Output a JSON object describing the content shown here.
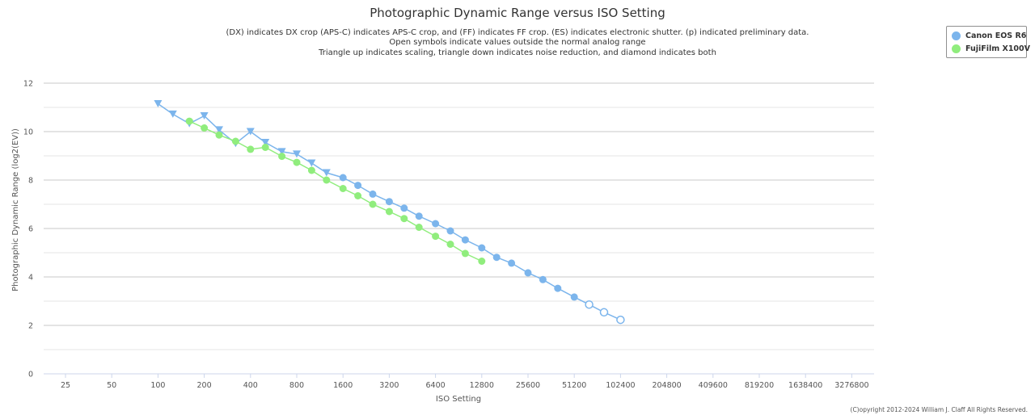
{
  "chart_data": {
    "type": "line",
    "title": "Photographic Dynamic Range versus ISO Setting",
    "subtitle": [
      "(DX) indicates DX crop (APS-C) indicates APS-C crop, and (FF) indicates FF crop. (ES) indicates electronic shutter. (p) indicated preliminary data.",
      "Open symbols indicate values outside the normal analog range",
      "Triangle up indicates scaling, triangle down indicates noise reduction, and diamond indicates both"
    ],
    "xlabel": "ISO Setting",
    "ylabel": "Photographic Dynamic Range (log2(EV))",
    "x_scale": "log2",
    "x_ticks": [
      "25",
      "50",
      "100",
      "200",
      "400",
      "800",
      "1600",
      "3200",
      "6400",
      "12800",
      "25600",
      "51200",
      "102400",
      "204800",
      "409600",
      "819200",
      "1638400",
      "3276800"
    ],
    "y_ticks": [
      "0",
      "2",
      "4",
      "6",
      "8",
      "10",
      "12"
    ],
    "ylim": [
      0,
      12
    ],
    "grid": true,
    "legend_position": "top-right",
    "series": [
      {
        "name": "Canon EOS R6",
        "color": "#7cb5ec",
        "points": [
          {
            "iso": 100,
            "dr": 11.15,
            "marker": "triangle-down",
            "open": false
          },
          {
            "iso": 125,
            "dr": 10.72,
            "marker": "triangle-down",
            "open": false
          },
          {
            "iso": 160,
            "dr": 10.33,
            "marker": "triangle-down",
            "open": false
          },
          {
            "iso": 200,
            "dr": 10.65,
            "marker": "triangle-down",
            "open": false
          },
          {
            "iso": 250,
            "dr": 10.07,
            "marker": "triangle-down",
            "open": false
          },
          {
            "iso": 320,
            "dr": 9.51,
            "marker": "triangle-down",
            "open": false
          },
          {
            "iso": 400,
            "dr": 10.0,
            "marker": "triangle-down",
            "open": false
          },
          {
            "iso": 500,
            "dr": 9.55,
            "marker": "triangle-down",
            "open": false
          },
          {
            "iso": 640,
            "dr": 9.17,
            "marker": "triangle-down",
            "open": false
          },
          {
            "iso": 800,
            "dr": 9.07,
            "marker": "triangle-down",
            "open": false
          },
          {
            "iso": 1000,
            "dr": 8.7,
            "marker": "triangle-down",
            "open": false
          },
          {
            "iso": 1250,
            "dr": 8.3,
            "marker": "triangle-down",
            "open": false
          },
          {
            "iso": 1600,
            "dr": 8.1,
            "marker": "circle",
            "open": false
          },
          {
            "iso": 2000,
            "dr": 7.78,
            "marker": "circle",
            "open": false
          },
          {
            "iso": 2500,
            "dr": 7.42,
            "marker": "circle",
            "open": false
          },
          {
            "iso": 3200,
            "dr": 7.11,
            "marker": "circle",
            "open": false
          },
          {
            "iso": 4000,
            "dr": 6.84,
            "marker": "circle",
            "open": false
          },
          {
            "iso": 5000,
            "dr": 6.51,
            "marker": "circle",
            "open": false
          },
          {
            "iso": 6400,
            "dr": 6.2,
            "marker": "circle",
            "open": false
          },
          {
            "iso": 8000,
            "dr": 5.9,
            "marker": "circle",
            "open": false
          },
          {
            "iso": 10000,
            "dr": 5.53,
            "marker": "circle",
            "open": false
          },
          {
            "iso": 12800,
            "dr": 5.2,
            "marker": "circle",
            "open": false
          },
          {
            "iso": 16000,
            "dr": 4.81,
            "marker": "circle",
            "open": false
          },
          {
            "iso": 20000,
            "dr": 4.57,
            "marker": "circle",
            "open": false
          },
          {
            "iso": 25600,
            "dr": 4.17,
            "marker": "circle",
            "open": false
          },
          {
            "iso": 32000,
            "dr": 3.89,
            "marker": "circle",
            "open": false
          },
          {
            "iso": 40000,
            "dr": 3.53,
            "marker": "circle",
            "open": false
          },
          {
            "iso": 51200,
            "dr": 3.17,
            "marker": "circle",
            "open": false
          },
          {
            "iso": 64000,
            "dr": 2.86,
            "marker": "circle",
            "open": true
          },
          {
            "iso": 80000,
            "dr": 2.54,
            "marker": "circle",
            "open": true
          },
          {
            "iso": 102400,
            "dr": 2.23,
            "marker": "circle",
            "open": true
          }
        ]
      },
      {
        "name": "FujiFilm X100V",
        "color": "#90ed7d",
        "points": [
          {
            "iso": 160,
            "dr": 10.43,
            "marker": "circle",
            "open": false
          },
          {
            "iso": 200,
            "dr": 10.15,
            "marker": "circle",
            "open": false
          },
          {
            "iso": 250,
            "dr": 9.86,
            "marker": "circle",
            "open": false
          },
          {
            "iso": 320,
            "dr": 9.6,
            "marker": "circle",
            "open": false
          },
          {
            "iso": 400,
            "dr": 9.27,
            "marker": "circle",
            "open": false
          },
          {
            "iso": 500,
            "dr": 9.35,
            "marker": "circle",
            "open": false
          },
          {
            "iso": 640,
            "dr": 8.98,
            "marker": "circle",
            "open": false
          },
          {
            "iso": 800,
            "dr": 8.73,
            "marker": "circle",
            "open": false
          },
          {
            "iso": 1000,
            "dr": 8.4,
            "marker": "circle",
            "open": false
          },
          {
            "iso": 1250,
            "dr": 8.0,
            "marker": "circle",
            "open": false
          },
          {
            "iso": 1600,
            "dr": 7.65,
            "marker": "circle",
            "open": false
          },
          {
            "iso": 2000,
            "dr": 7.35,
            "marker": "circle",
            "open": false
          },
          {
            "iso": 2500,
            "dr": 7.0,
            "marker": "circle",
            "open": false
          },
          {
            "iso": 3200,
            "dr": 6.7,
            "marker": "circle",
            "open": false
          },
          {
            "iso": 4000,
            "dr": 6.41,
            "marker": "circle",
            "open": false
          },
          {
            "iso": 5000,
            "dr": 6.05,
            "marker": "circle",
            "open": false
          },
          {
            "iso": 6400,
            "dr": 5.68,
            "marker": "circle",
            "open": false
          },
          {
            "iso": 8000,
            "dr": 5.35,
            "marker": "circle",
            "open": false
          },
          {
            "iso": 10000,
            "dr": 4.97,
            "marker": "circle",
            "open": false
          },
          {
            "iso": 12800,
            "dr": 4.65,
            "marker": "circle",
            "open": false
          }
        ]
      }
    ],
    "copyright": "(C)opyright 2012-2024 William J. Claff All Rights Reserved."
  }
}
